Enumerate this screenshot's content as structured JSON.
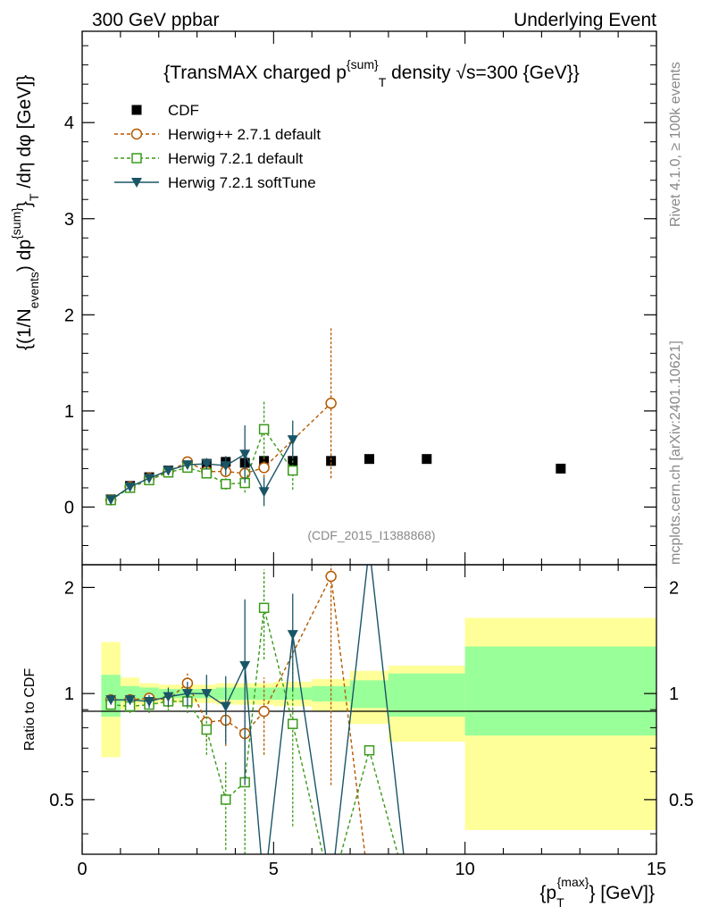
{
  "header": {
    "left": "300 GeV ppbar",
    "right": "Underlying Event"
  },
  "side": {
    "rivet": "Rivet 4.1.0, ≥ 100k events",
    "mcplots": "mcplots.cern.ch [arXiv:2401.10621]"
  },
  "colors": {
    "cdf": "#000000",
    "herwigpp": "#b35900",
    "herwig72": "#3a9a1a",
    "softtune": "#1a5566",
    "band_outer": "#ffff99",
    "band_inner": "#99ff99"
  },
  "chart_data": [
    {
      "type": "scatter",
      "panel": "main",
      "title": "{TransMAX charged p^{sum}_T density √s=300 {GeV}}",
      "title_parts": {
        "prefix": "{TransMAX charged p",
        "sup": "{sum}",
        "sub": "T",
        "suffix": " density √s=300 {GeV}}"
      },
      "ylabel_parts": {
        "a": "{(1/N",
        "a_sub": "events",
        "b": ") dp",
        "b_sup": "{sum}",
        "c": "}",
        "c_sub": "T",
        "d": " /dη  dφ [GeV]}"
      },
      "watermark": "(CDF_2015_I1388868)",
      "xlim": [
        0,
        15
      ],
      "ylim": [
        -0.6,
        4.95
      ],
      "yticks": [
        0,
        1,
        2,
        3,
        4
      ],
      "ytick_labels": [
        "0",
        "1",
        "2",
        "3",
        "4"
      ],
      "legend": [
        {
          "key": "cdf",
          "label": "CDF"
        },
        {
          "key": "herwigpp",
          "label": "Herwig++ 2.7.1 default"
        },
        {
          "key": "herwig72",
          "label": "Herwig 7.2.1 default"
        },
        {
          "key": "softtune",
          "label": "Herwig 7.2.1 softTune"
        }
      ],
      "series": [
        {
          "name": "CDF",
          "key": "cdf",
          "marker": "square",
          "x": [
            0.75,
            1.25,
            1.75,
            2.25,
            2.75,
            3.25,
            3.75,
            4.25,
            4.75,
            5.5,
            6.5,
            7.5,
            9.0,
            12.5
          ],
          "y": [
            0.08,
            0.22,
            0.31,
            0.38,
            0.43,
            0.45,
            0.47,
            0.46,
            0.48,
            0.48,
            0.48,
            0.5,
            0.5,
            0.4
          ],
          "err": [
            0.01,
            0.015,
            0.015,
            0.02,
            0.02,
            0.02,
            0.02,
            0.02,
            0.02,
            0.02,
            0.02,
            0.02,
            0.02,
            0.02
          ]
        },
        {
          "name": "Herwig++ 2.7.1 default",
          "key": "herwigpp",
          "marker": "circle",
          "x": [
            0.75,
            1.25,
            1.75,
            2.25,
            2.75,
            3.25,
            3.75,
            4.25,
            4.75,
            6.5
          ],
          "y": [
            0.075,
            0.21,
            0.3,
            0.37,
            0.47,
            0.37,
            0.37,
            0.35,
            0.41,
            1.08
          ],
          "err": [
            0.005,
            0.01,
            0.015,
            0.02,
            0.03,
            0.05,
            0.06,
            0.08,
            0.1,
            0.78
          ]
        },
        {
          "name": "Herwig 7.2.1 default",
          "key": "herwig72",
          "marker": "open-square",
          "x": [
            0.75,
            1.25,
            1.75,
            2.25,
            2.75,
            3.25,
            3.75,
            4.25,
            4.75,
            5.5
          ],
          "y": [
            0.073,
            0.2,
            0.28,
            0.36,
            0.41,
            0.35,
            0.24,
            0.25,
            0.81,
            0.38
          ],
          "err": [
            0.005,
            0.01,
            0.015,
            0.02,
            0.03,
            0.05,
            0.06,
            0.1,
            0.3,
            0.2
          ]
        },
        {
          "name": "Herwig 7.2.1 softTune",
          "key": "softtune",
          "marker": "triangle-down",
          "x": [
            0.75,
            1.25,
            1.75,
            2.25,
            2.75,
            3.25,
            3.75,
            4.25,
            4.75,
            5.5
          ],
          "y": [
            0.077,
            0.21,
            0.3,
            0.38,
            0.44,
            0.45,
            0.43,
            0.55,
            0.16,
            0.7
          ],
          "err": [
            0.005,
            0.01,
            0.015,
            0.03,
            0.04,
            0.06,
            0.1,
            0.3,
            0.15,
            0.2
          ]
        }
      ]
    },
    {
      "type": "line",
      "panel": "ratio",
      "ylabel": "Ratio to CDF",
      "xlabel_parts": {
        "a": "{p",
        "a_sub": "T",
        "a_sup": "{max}",
        "b": "} [GeV]}"
      },
      "xlim": [
        0,
        15
      ],
      "ylim": [
        0.35,
        2.32
      ],
      "xticks": [
        0,
        5,
        10,
        15
      ],
      "xtick_labels": [
        "0",
        "5",
        "10",
        "15"
      ],
      "yticks": [
        0.5,
        1,
        2
      ],
      "ytick_labels": [
        "0.5",
        "1",
        "2"
      ],
      "bands": {
        "edges": [
          0.5,
          1.0,
          1.5,
          2.0,
          2.5,
          3.0,
          3.5,
          4.0,
          4.5,
          5.0,
          6.0,
          7.0,
          8.0,
          10.0,
          15.0
        ],
        "outer_lo": [
          0.66,
          0.9,
          0.93,
          0.94,
          0.94,
          0.94,
          0.93,
          0.93,
          0.93,
          0.92,
          0.89,
          0.82,
          0.73,
          0.41
        ],
        "outer_hi": [
          1.4,
          1.11,
          1.07,
          1.06,
          1.06,
          1.06,
          1.07,
          1.07,
          1.07,
          1.08,
          1.1,
          1.16,
          1.2,
          1.64
        ],
        "inner_lo": [
          0.86,
          0.95,
          0.96,
          0.97,
          0.97,
          0.97,
          0.96,
          0.96,
          0.96,
          0.96,
          0.95,
          0.91,
          0.86,
          0.76
        ],
        "inner_hi": [
          1.13,
          1.05,
          1.04,
          1.03,
          1.03,
          1.03,
          1.04,
          1.04,
          1.04,
          1.04,
          1.05,
          1.09,
          1.14,
          1.36
        ]
      },
      "series": [
        {
          "name": "Herwig++ 2.7.1 default",
          "key": "herwigpp",
          "marker": "circle",
          "x": [
            0.75,
            1.25,
            1.75,
            2.25,
            2.75,
            3.25,
            3.75,
            4.25,
            4.75,
            6.5,
            7.5
          ],
          "y": [
            0.96,
            0.96,
            0.97,
            0.96,
            1.07,
            0.83,
            0.84,
            0.77,
            0.89,
            2.15,
            0.0
          ],
          "err": [
            0.03,
            0.03,
            0.03,
            0.05,
            0.07,
            0.1,
            0.13,
            0.17,
            0.22,
            1.6,
            0
          ],
          "marker_mask": [
            true,
            true,
            true,
            true,
            true,
            true,
            true,
            true,
            true,
            true,
            false
          ]
        },
        {
          "name": "Herwig 7.2.1 default",
          "key": "herwig72",
          "marker": "open-square",
          "x": [
            0.75,
            1.25,
            1.75,
            2.25,
            2.75,
            3.25,
            3.75,
            4.25,
            4.75,
            5.5,
            6.5,
            7.5,
            8.5
          ],
          "y": [
            0.93,
            0.92,
            0.93,
            0.95,
            0.95,
            0.79,
            0.5,
            0.56,
            1.75,
            0.82,
            0.0,
            0.69,
            0.0
          ],
          "err": [
            0.03,
            0.04,
            0.05,
            0.06,
            0.07,
            0.12,
            0.14,
            0.22,
            0.5,
            0.4,
            0,
            0,
            0
          ],
          "marker_mask": [
            true,
            true,
            true,
            true,
            true,
            true,
            true,
            true,
            true,
            true,
            false,
            true,
            false
          ]
        },
        {
          "name": "Herwig 7.2.1 softTune",
          "key": "softtune",
          "marker": "triangle-down",
          "x": [
            0.75,
            1.25,
            1.75,
            2.25,
            2.75,
            3.25,
            3.75,
            4.25,
            4.75,
            5.5,
            6.5,
            7.5,
            8.5
          ],
          "y": [
            0.96,
            0.96,
            0.95,
            0.98,
            1.0,
            1.0,
            0.92,
            1.2,
            0.0,
            1.47,
            0.0,
            2.6,
            0.0
          ],
          "err": [
            0.03,
            0.03,
            0.04,
            0.06,
            0.08,
            0.13,
            0.2,
            0.65,
            0,
            0.45,
            0,
            0,
            0
          ],
          "marker_mask": [
            true,
            true,
            true,
            true,
            true,
            true,
            true,
            true,
            false,
            true,
            false,
            false,
            false
          ]
        }
      ]
    }
  ]
}
